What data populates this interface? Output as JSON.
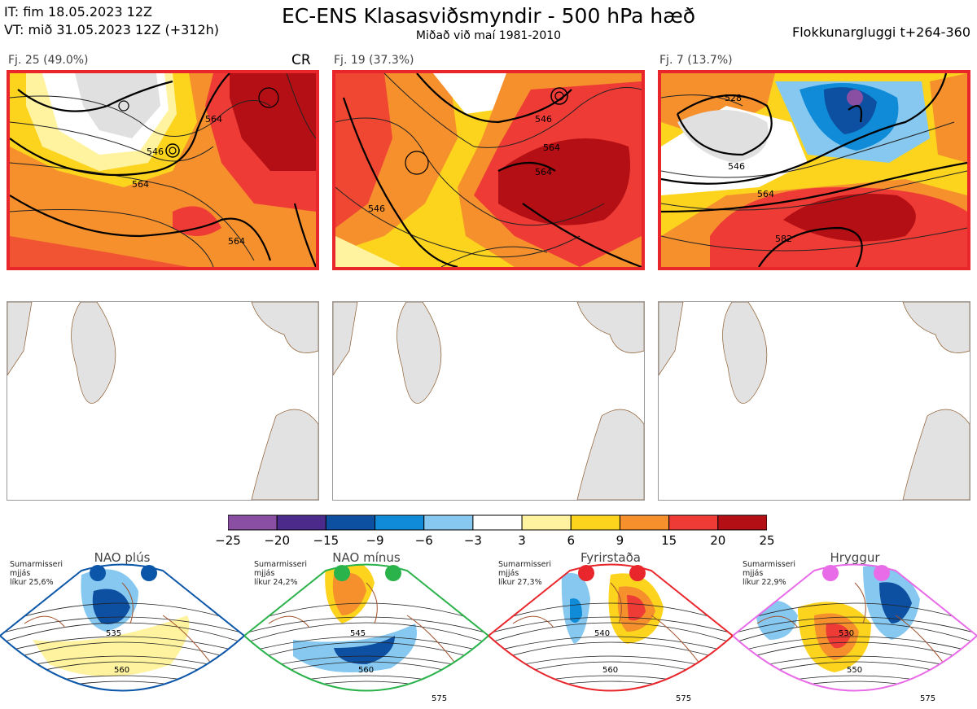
{
  "header": {
    "it_line": "IT: fim 18.05.2023 12Z",
    "vt_line": "VT: mið 31.05.2023 12Z  (+312h)",
    "title": "EC-ENS Klasasviðsmyndir - 500 hPa hæð",
    "subtitle": "Miðað við maí 1981-2010",
    "window": "Flokkunargluggi t+264-360"
  },
  "clusters": [
    {
      "label": "Fj. 25 (49.0%)",
      "tag": "CR",
      "contours": [
        "546",
        "564",
        "564",
        "564"
      ]
    },
    {
      "label": "Fj. 19 (37.3%)",
      "tag": "",
      "contours": [
        "546",
        "564",
        "564",
        "546"
      ]
    },
    {
      "label": "Fj. 7 (13.7%)",
      "tag": "",
      "contours": [
        "528",
        "546",
        "564",
        "582"
      ]
    }
  ],
  "colorbar": {
    "ticks": [
      "−25",
      "−20",
      "−15",
      "−9",
      "−6",
      "−3",
      "3",
      "6",
      "9",
      "15",
      "20",
      "25"
    ],
    "colors": [
      "#8a4fa3",
      "#4b2a8c",
      "#0d4fa0",
      "#0f8bd8",
      "#86c8ef",
      "#ffffff",
      "#fff3a0",
      "#fcd41e",
      "#f5902d",
      "#ee3b35",
      "#b30f14"
    ]
  },
  "regimes": [
    {
      "title": "NAO plús",
      "note_lines": [
        "Sumarmisseri",
        "mjjás",
        "líkur 25,6%"
      ],
      "color": "#0b56a8",
      "contours": [
        "535",
        "560"
      ]
    },
    {
      "title": "NAO mínus",
      "note_lines": [
        "Sumarmisseri",
        "mjjás",
        "líkur 24,2%"
      ],
      "color": "#2ab24b",
      "contours": [
        "545",
        "560",
        "575"
      ]
    },
    {
      "title": "Fyrirstaða",
      "note_lines": [
        "Sumarmisseri",
        "mjjás",
        "líkur 27,3%"
      ],
      "color": "#e8262c",
      "contours": [
        "540",
        "560",
        "575"
      ]
    },
    {
      "title": "Hryggur",
      "note_lines": [
        "Sumarmisseri",
        "mjjás",
        "líkur 22,9%"
      ],
      "color": "#e86be8",
      "contours": [
        "530",
        "550",
        "575"
      ]
    }
  ]
}
